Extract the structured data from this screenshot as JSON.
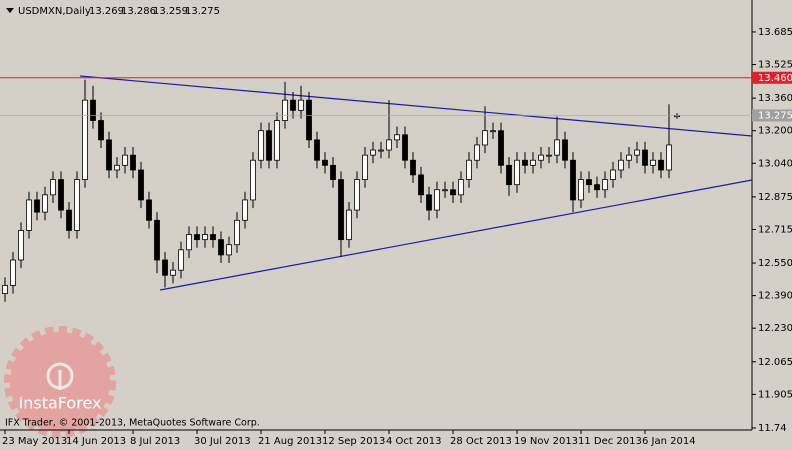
{
  "chart_data": {
    "type": "candlestick",
    "title": "USDMXN,Daily",
    "categories": [
      "23 May 2013",
      null,
      null,
      null,
      null,
      null,
      null,
      null,
      "14 Jun 2013",
      null,
      null,
      null,
      null,
      null,
      null,
      null,
      "8 Jul 2013",
      null,
      null,
      null,
      null,
      null,
      null,
      null,
      "30 Jul 2013",
      null,
      null,
      null,
      null,
      null,
      null,
      null,
      "21 Aug 2013",
      null,
      null,
      null,
      null,
      null,
      null,
      null,
      "12 Sep 2013",
      null,
      null,
      null,
      null,
      null,
      null,
      null,
      "4 Oct 2013",
      null,
      null,
      null,
      null,
      null,
      null,
      null,
      "28 Oct 2013",
      null,
      null,
      null,
      null,
      null,
      null,
      null,
      "19 Nov 2013",
      null,
      null,
      null,
      null,
      null,
      null,
      null,
      "11 Dec 2013",
      null,
      null,
      null,
      null,
      null,
      null,
      null,
      "6 Jan 2014",
      null,
      null,
      null,
      null
    ],
    "open": [
      12.4,
      12.44,
      12.565,
      12.71,
      12.86,
      12.8,
      12.885,
      12.96,
      12.81,
      12.71,
      12.96,
      13.35,
      13.25,
      13.155,
      13.007,
      13.03,
      13.08,
      13.007,
      12.86,
      12.76,
      12.565,
      12.49,
      12.515,
      12.615,
      12.69,
      12.665,
      12.69,
      12.665,
      12.59,
      12.64,
      12.76,
      12.86,
      13.055,
      13.2,
      13.055,
      13.25,
      13.35,
      13.3,
      13.35,
      13.155,
      13.055,
      13.03,
      12.96,
      12.665,
      12.81,
      12.96,
      13.08,
      13.105,
      13.105,
      13.155,
      13.18,
      13.055,
      12.983,
      12.885,
      12.81,
      12.91,
      12.91,
      12.885,
      12.96,
      13.055,
      13.13,
      13.2,
      13.2,
      13.03,
      12.935,
      13.055,
      13.03,
      13.055,
      13.08,
      13.08,
      13.155,
      13.055,
      12.86,
      12.96,
      12.935,
      12.91,
      12.96,
      13.007,
      13.055,
      13.08,
      13.105,
      13.03,
      13.055,
      13.007,
      13.269
    ],
    "high": [
      12.48,
      12.605,
      12.75,
      12.9,
      12.9,
      12.925,
      13.0,
      13.0,
      12.85,
      13.0,
      13.45,
      13.42,
      13.29,
      13.195,
      13.07,
      13.12,
      13.12,
      13.047,
      12.9,
      12.8,
      12.605,
      12.555,
      12.655,
      12.73,
      12.73,
      12.73,
      12.73,
      12.705,
      12.68,
      12.8,
      12.9,
      13.095,
      13.24,
      13.24,
      13.29,
      13.44,
      13.39,
      13.42,
      13.39,
      13.195,
      13.095,
      13.07,
      13.0,
      12.85,
      13.0,
      13.12,
      13.145,
      13.145,
      13.35,
      13.22,
      13.22,
      13.095,
      13.023,
      12.925,
      12.95,
      12.95,
      12.95,
      13.0,
      13.095,
      13.17,
      13.32,
      13.24,
      13.24,
      13.07,
      13.095,
      13.095,
      13.095,
      13.12,
      13.12,
      13.27,
      13.195,
      13.095,
      13.0,
      13.0,
      12.975,
      13.0,
      13.047,
      13.095,
      13.12,
      13.145,
      13.145,
      13.095,
      13.095,
      13.33,
      13.286
    ],
    "low": [
      12.36,
      12.4,
      12.525,
      12.67,
      12.76,
      12.76,
      12.845,
      12.77,
      12.67,
      12.67,
      12.92,
      13.21,
      13.115,
      12.967,
      12.967,
      12.99,
      12.967,
      12.82,
      12.72,
      12.5,
      12.43,
      12.45,
      12.475,
      12.575,
      12.625,
      12.625,
      12.625,
      12.55,
      12.55,
      12.6,
      12.72,
      12.82,
      13.015,
      13.015,
      13.015,
      13.21,
      13.26,
      13.26,
      13.115,
      13.015,
      12.99,
      12.92,
      12.58,
      12.625,
      12.77,
      12.92,
      13.04,
      13.065,
      13.065,
      13.115,
      13.015,
      12.943,
      12.845,
      12.76,
      12.77,
      12.87,
      12.845,
      12.845,
      12.92,
      13.015,
      13.09,
      13.16,
      12.99,
      12.88,
      12.895,
      12.99,
      12.99,
      13.015,
      13.04,
      13.04,
      13.015,
      12.8,
      12.82,
      12.895,
      12.87,
      12.87,
      12.92,
      12.967,
      13.015,
      13.04,
      12.99,
      12.99,
      12.967,
      12.967,
      13.259
    ],
    "close": [
      12.44,
      12.565,
      12.71,
      12.86,
      12.8,
      12.885,
      12.96,
      12.81,
      12.71,
      12.96,
      13.35,
      13.25,
      13.155,
      13.007,
      13.03,
      13.08,
      13.007,
      12.86,
      12.76,
      12.565,
      12.49,
      12.515,
      12.615,
      12.69,
      12.665,
      12.69,
      12.665,
      12.59,
      12.64,
      12.76,
      12.86,
      13.055,
      13.2,
      13.055,
      13.25,
      13.35,
      13.3,
      13.35,
      13.155,
      13.055,
      13.03,
      12.96,
      12.665,
      12.81,
      12.96,
      13.08,
      13.105,
      13.105,
      13.155,
      13.18,
      13.055,
      12.983,
      12.885,
      12.81,
      12.91,
      12.91,
      12.885,
      12.96,
      13.055,
      13.13,
      13.2,
      13.2,
      13.03,
      12.935,
      13.055,
      13.03,
      13.055,
      13.08,
      13.08,
      13.155,
      13.055,
      12.86,
      12.96,
      12.935,
      12.91,
      12.96,
      13.007,
      13.055,
      13.08,
      13.105,
      13.03,
      13.055,
      13.007,
      13.13,
      13.275
    ],
    "ylim": [
      11.73,
      13.842
    ],
    "yticks": [
      13.685,
      13.525,
      {
        "value": 13.36,
        "label": "13.360"
      },
      {
        "value": 13.2,
        "label": "13.200"
      },
      {
        "value": 13.04,
        "label": "13.040"
      },
      12.875,
      12.715,
      {
        "value": 12.55,
        "label": "12.550"
      },
      {
        "value": 12.39,
        "label": "12.390"
      },
      {
        "value": 12.23,
        "label": "12.230"
      },
      12.065,
      11.905,
      11.74
    ],
    "grid": false,
    "bull_color": "#ffffff",
    "bear_color": "#000000",
    "hline": {
      "value": 13.46,
      "label": "13.460",
      "color": "#e0202a"
    },
    "copyright": "IFX Trader, © 2001-2013, MetaQuotes Software Corp.",
    "watermark": "InstaForex"
  }
}
